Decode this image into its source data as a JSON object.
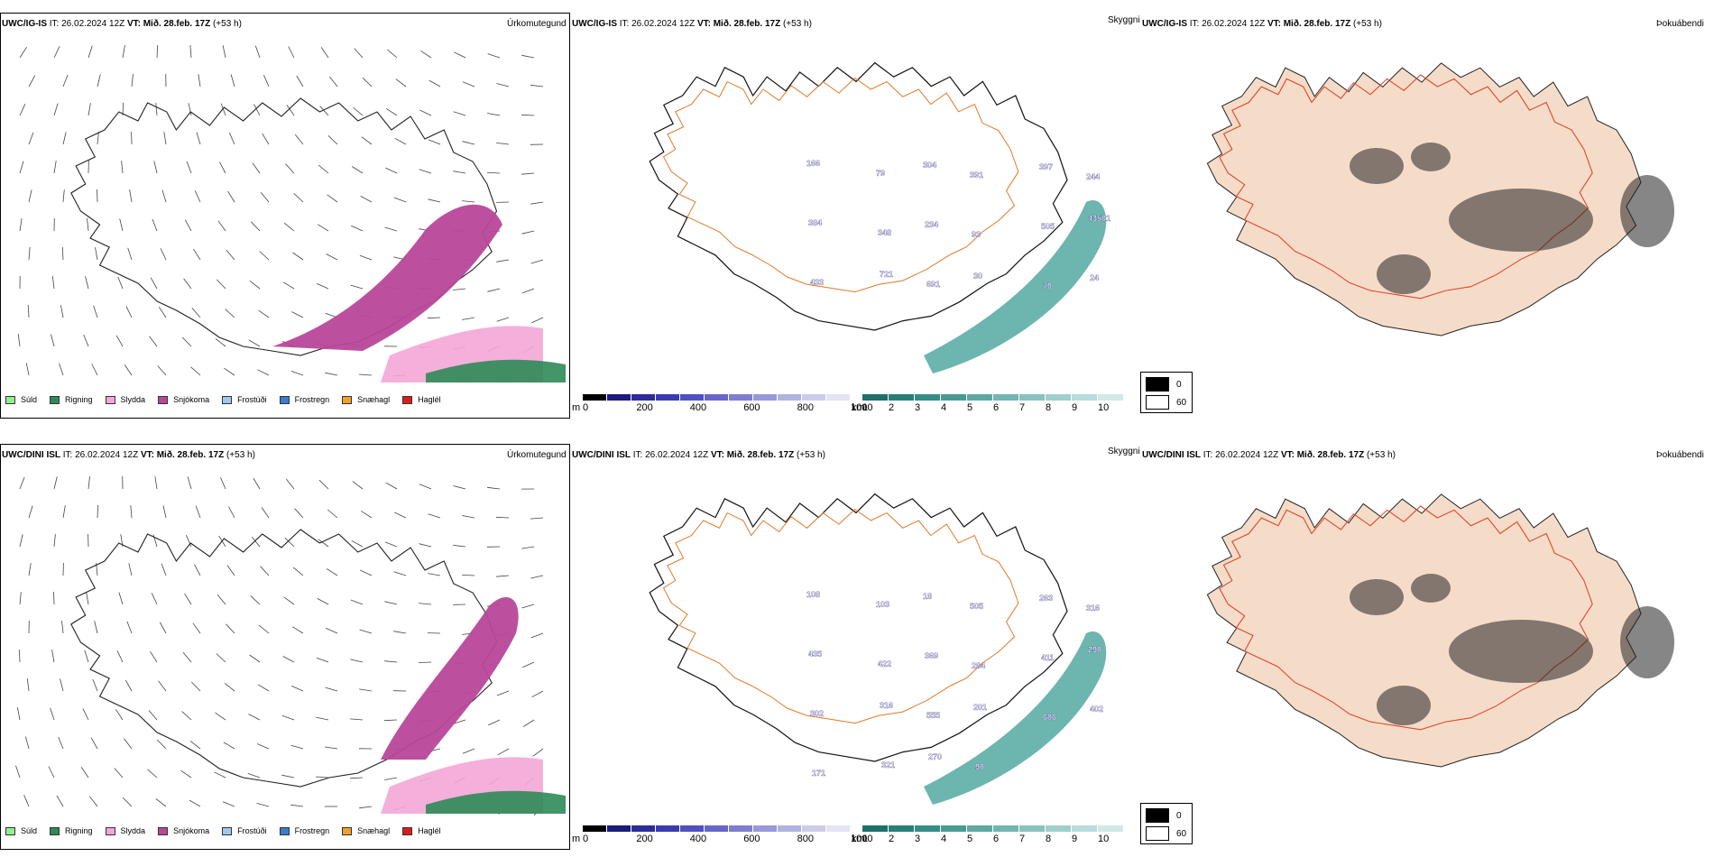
{
  "rows": [
    {
      "id": "top",
      "model": "UWC/IG-IS",
      "init": " IT: 26.02.2024 12Z ",
      "vt_label": "VT:",
      "vt_value": " Mið. 28.feb. 17Z",
      "lead": " (+53 h)",
      "panel1_title": "Úrkomutegund",
      "panel2_title": "Skyggni",
      "panel3_title": "Þokuábendi",
      "vis_labels": [
        "166",
        "79",
        "304",
        "391",
        "397",
        "244",
        "384",
        "348",
        "234",
        "93",
        "505",
        "43581",
        "433",
        "721",
        "691",
        "30",
        "70",
        "24"
      ]
    },
    {
      "id": "bottom",
      "model": "UWC/DINI ISL",
      "init": " IT: 26.02.2024 12Z ",
      "vt_label": "VT:",
      "vt_value": " Mið. 28.feb. 17Z",
      "lead": " (+53 h)",
      "panel1_title": "Úrkomutegund",
      "panel2_title": "Skyggni",
      "panel3_title": "Þokuábendi",
      "vis_labels": [
        "108",
        "103",
        "18",
        "505",
        "263",
        "316",
        "435",
        "422",
        "369",
        "284",
        "411",
        "298",
        "302",
        "316",
        "555",
        "201",
        "686",
        "402",
        "171",
        "321",
        "270",
        "98"
      ]
    }
  ],
  "precip_legend": [
    {
      "label": "Súld",
      "color": "#90ee90"
    },
    {
      "label": "Rigning",
      "color": "#2e8b57"
    },
    {
      "label": "Slydda",
      "color": "#f4a6d7"
    },
    {
      "label": "Snjókoma",
      "color": "#b8479a"
    },
    {
      "label": "Frostúði",
      "color": "#9ec9f0"
    },
    {
      "label": "Frostregn",
      "color": "#3a7dc9"
    },
    {
      "label": "Snæhagl",
      "color": "#f2a02a"
    },
    {
      "label": "Haglél",
      "color": "#e01b1b"
    }
  ],
  "vis_bar_m": {
    "unit": "m",
    "ticks": [
      "0",
      "200",
      "400",
      "600",
      "800",
      "1000"
    ],
    "colors": [
      "#000000",
      "#1b1b7a",
      "#2c2c9a",
      "#3b3bb0",
      "#5050bf",
      "#6666c8",
      "#7e7ed0",
      "#9898d8",
      "#b2b2e0",
      "#ccccea",
      "#e4e4f4"
    ]
  },
  "vis_bar_km": {
    "unit": "km",
    "ticks": [
      "1",
      "2",
      "3",
      "4",
      "5",
      "6",
      "7",
      "8",
      "9",
      "10"
    ],
    "colors": [
      "#1f6f6a",
      "#2a7e78",
      "#368c86",
      "#4a9a94",
      "#5fa8a2",
      "#74b5b0",
      "#8ac2bd",
      "#a0cfcb",
      "#b8dcd9",
      "#d0e9e7"
    ]
  },
  "fog_legend": [
    {
      "label": "0",
      "color": "#000000"
    },
    {
      "label": "60",
      "color": "#ffffff"
    }
  ]
}
